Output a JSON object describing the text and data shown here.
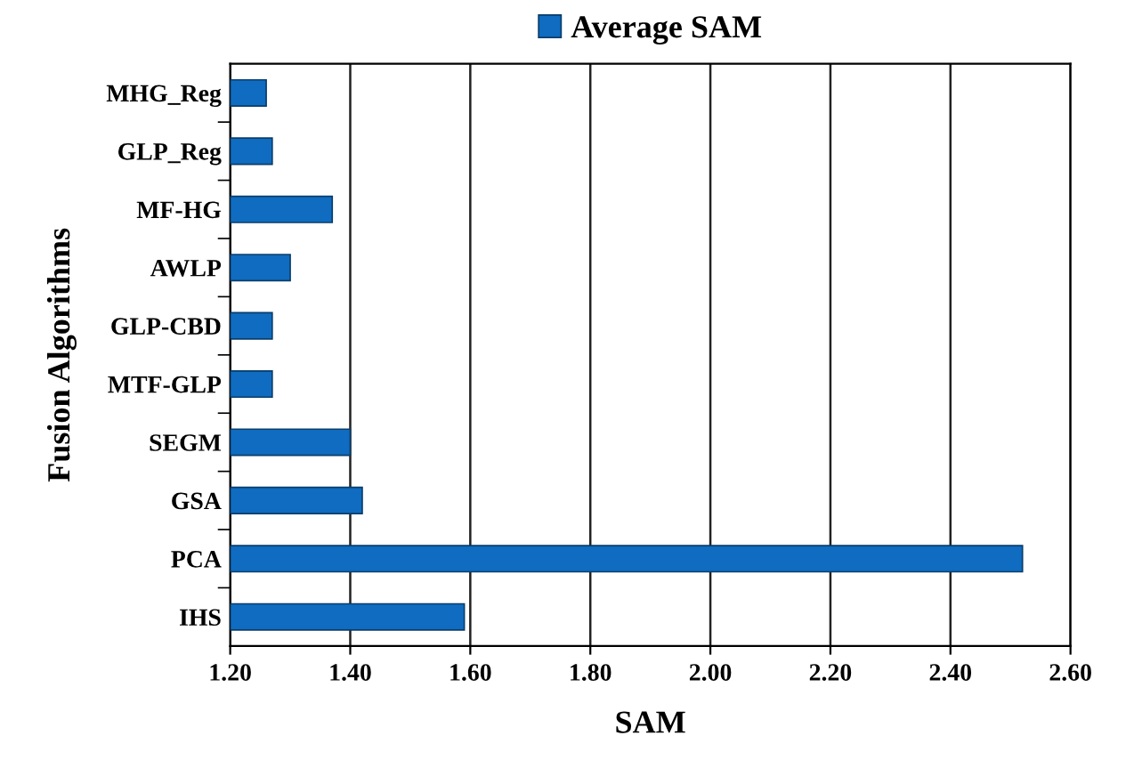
{
  "chart_data": {
    "type": "bar",
    "orientation": "horizontal",
    "xlabel": "SAM",
    "ylabel": "Fusion Algorithms",
    "categories": [
      "MHG_Reg",
      "GLP_Reg",
      "MF-HG",
      "AWLP",
      "GLP-CBD",
      "MTF-GLP",
      "SEGM",
      "GSA",
      "PCA",
      "IHS"
    ],
    "series": [
      {
        "name": "Average SAM",
        "color": "#0f6cc0",
        "values": [
          1.26,
          1.27,
          1.37,
          1.3,
          1.27,
          1.27,
          1.4,
          1.42,
          2.52,
          1.59
        ]
      }
    ],
    "xlim": [
      1.2,
      2.6
    ],
    "xticks": [
      {
        "value": 1.2,
        "label": "1.20"
      },
      {
        "value": 1.4,
        "label": "1.40"
      },
      {
        "value": 1.6,
        "label": "1.60"
      },
      {
        "value": 1.8,
        "label": "1.80"
      },
      {
        "value": 2.0,
        "label": "2.00"
      },
      {
        "value": 2.2,
        "label": "2.20"
      },
      {
        "value": 2.4,
        "label": "2.40"
      },
      {
        "value": 2.6,
        "label": "2.60"
      }
    ],
    "grid": "x",
    "legend": "top"
  }
}
